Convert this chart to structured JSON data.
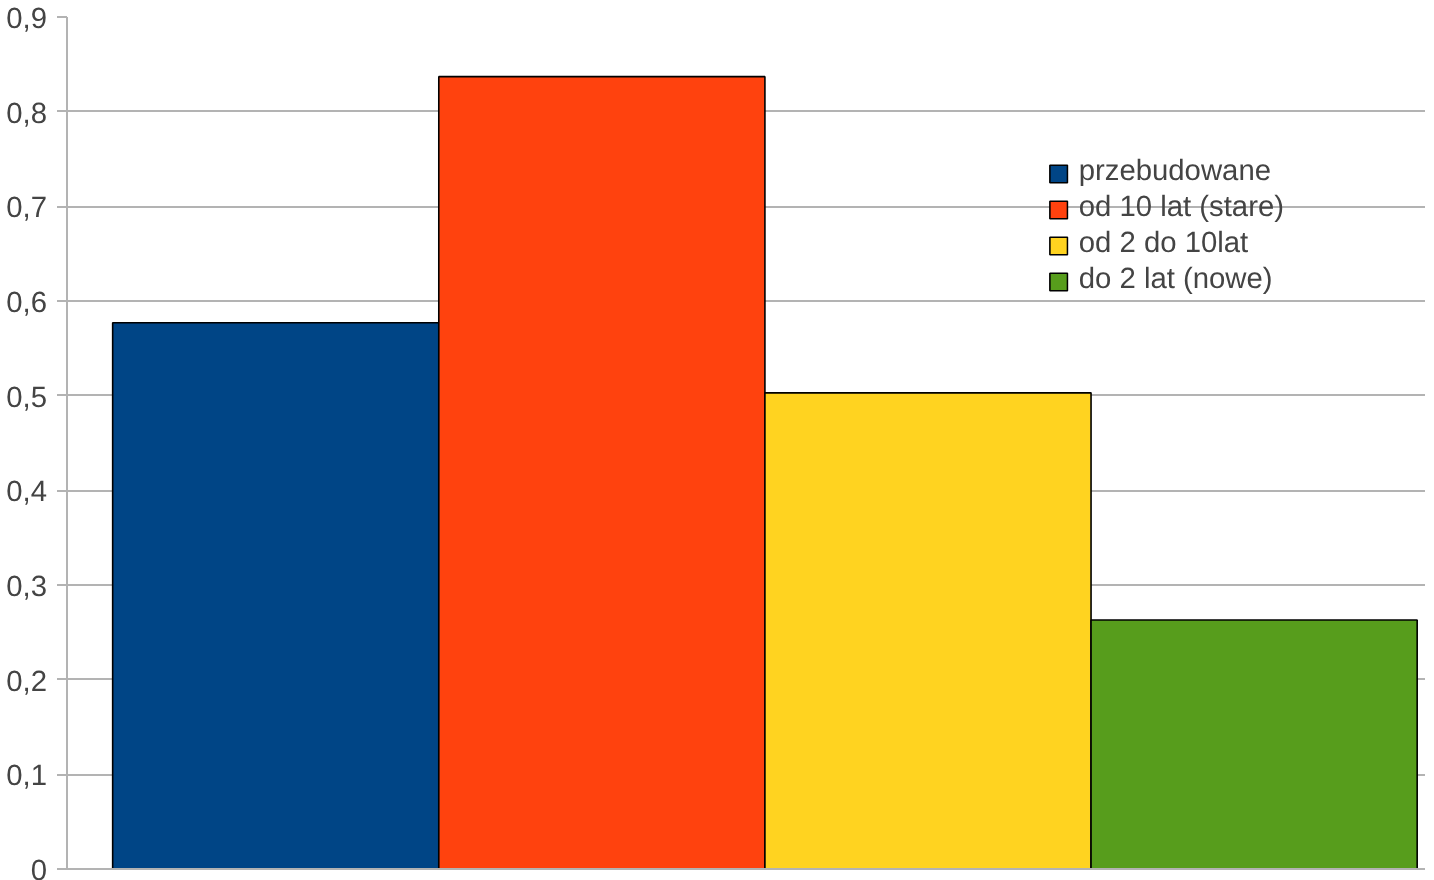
{
  "chart_data": {
    "type": "bar",
    "categories": [
      null
    ],
    "series": [
      {
        "name": "przebudowane",
        "color": "#004586",
        "values": [
          0.577
        ]
      },
      {
        "name": "od 10 lat (stare)",
        "color": "#ff420e",
        "values": [
          0.837
        ]
      },
      {
        "name": "od 2 do 10lat",
        "color": "#ffd320",
        "values": [
          0.503
        ]
      },
      {
        "name": "do 2 lat (nowe)",
        "color": "#579d1c",
        "values": [
          0.263
        ]
      }
    ],
    "ylim": [
      0,
      0.9
    ],
    "yticks": [
      {
        "value": 0,
        "label": "0"
      },
      {
        "value": 0.1,
        "label": "0,1"
      },
      {
        "value": 0.2,
        "label": "0,2"
      },
      {
        "value": 0.3,
        "label": "0,3"
      },
      {
        "value": 0.4,
        "label": "0,4"
      },
      {
        "value": 0.5,
        "label": "0,5"
      },
      {
        "value": 0.6,
        "label": "0,6"
      },
      {
        "value": 0.7,
        "label": "0,7"
      },
      {
        "value": 0.8,
        "label": "0,8"
      },
      {
        "value": 0.9,
        "label": "0,9"
      }
    ],
    "grid": "y",
    "legend": "top right",
    "tick_labels": "y"
  }
}
